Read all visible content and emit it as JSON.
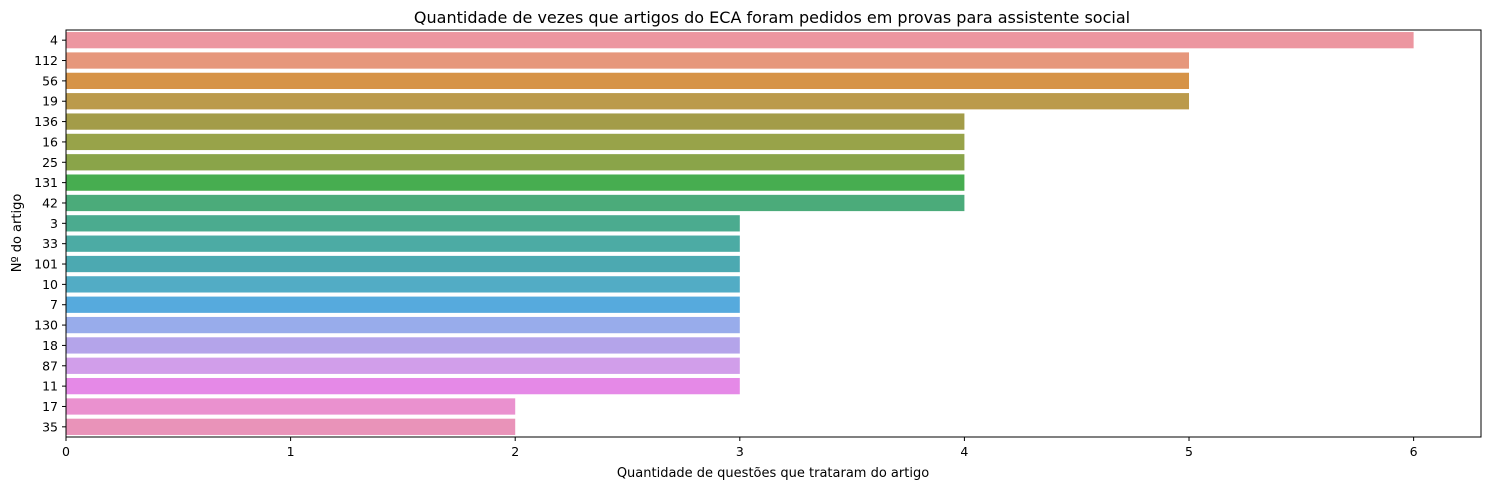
{
  "chart_data": {
    "type": "bar",
    "orientation": "horizontal",
    "title": "Quantidade de vezes que artigos do ECA foram pedidos em provas para assistente social",
    "xlabel": "Quantidade de questões que trataram do artigo",
    "ylabel": "Nº do artigo",
    "categories": [
      "4",
      "112",
      "56",
      "19",
      "136",
      "16",
      "25",
      "131",
      "42",
      "3",
      "33",
      "101",
      "10",
      "7",
      "130",
      "18",
      "87",
      "11",
      "17",
      "35"
    ],
    "values": [
      6,
      5,
      5,
      5,
      4,
      4,
      4,
      4,
      4,
      3,
      3,
      3,
      3,
      3,
      3,
      3,
      3,
      3,
      2,
      2
    ],
    "xlim": [
      0,
      6.3
    ],
    "xticks": [
      "0",
      "1",
      "2",
      "3",
      "4",
      "5",
      "6"
    ],
    "grid": false,
    "legend": "none",
    "colors": [
      "#ec96a0",
      "#e6977c",
      "#d69347",
      "#bb9a4b",
      "#a39c48",
      "#98a349",
      "#8aa449",
      "#47ad50",
      "#4bab7a",
      "#4bab8f",
      "#4caba4",
      "#4ca9b1",
      "#52acc5",
      "#56aadd",
      "#98aceb",
      "#b4a4ea",
      "#d19eea",
      "#e589e7",
      "#ea91cf",
      "#e993b9"
    ]
  }
}
